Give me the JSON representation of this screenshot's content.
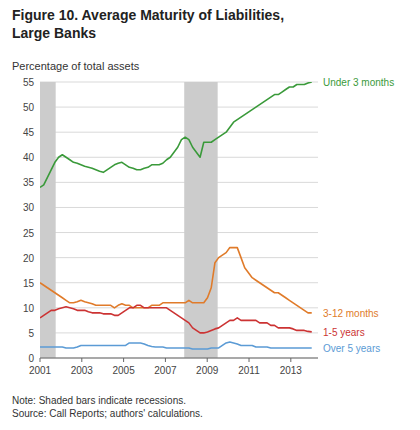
{
  "chart_data": {
    "type": "line",
    "title": "Figure 10. Average Maturity of Liabilities,\nLarge Banks",
    "ylabel": "Percentage of total assets",
    "note": "Note: Shaded bars indicate recessions.\nSource: Call Reports; authors' calculations.",
    "xlim": [
      2001.0,
      2014.3
    ],
    "ylim": [
      0,
      55
    ],
    "xticks": [
      2001,
      2003,
      2005,
      2007,
      2009,
      2011,
      2013
    ],
    "yticks": [
      0,
      5,
      10,
      15,
      20,
      25,
      30,
      35,
      40,
      45,
      50,
      55
    ],
    "grid": true,
    "shaded_bands": [
      [
        2001.0,
        2001.75
      ],
      [
        2007.9,
        2009.5
      ]
    ],
    "band_color": "#cccccc",
    "x": [
      2001.0,
      2001.1781,
      2001.3562,
      2001.5342,
      2001.7123,
      2001.8904,
      2002.0685,
      2002.2466,
      2002.4247,
      2002.6027,
      2002.7808,
      2002.9589,
      2003.137,
      2003.3151,
      2003.4932,
      2003.6712,
      2003.8493,
      2004.0274,
      2004.2055,
      2004.3836,
      2004.5616,
      2004.7397,
      2004.9178,
      2005.0959,
      2005.274,
      2005.4521,
      2005.6301,
      2005.8082,
      2005.9863,
      2006.1644,
      2006.3425,
      2006.5205,
      2006.6986,
      2006.8767,
      2007.0548,
      2007.2329,
      2007.411,
      2007.589,
      2007.7671,
      2007.9452,
      2008.1233,
      2008.3014,
      2008.4795,
      2008.6575,
      2008.8356,
      2009.0137,
      2009.1918,
      2009.3699,
      2009.5479,
      2009.726,
      2009.9041,
      2010.0822,
      2010.2603,
      2010.4384,
      2010.6164,
      2010.7945,
      2010.9726,
      2011.1507,
      2011.3288,
      2011.5068,
      2011.6849,
      2011.863,
      2012.0411,
      2012.2192,
      2012.3973,
      2012.5753,
      2012.7534,
      2012.9315,
      2013.1096,
      2013.2877,
      2013.4658,
      2013.6438,
      2013.8219,
      2014.0
    ],
    "series": [
      {
        "name": "Under 3 months",
        "color": "#3a9a3a",
        "values": [
          34.0,
          34.5,
          36.0,
          37.5,
          39.0,
          40.0,
          40.5,
          40.0,
          39.5,
          39.0,
          38.8,
          38.5,
          38.2,
          38.0,
          37.8,
          37.5,
          37.2,
          37.0,
          37.5,
          38.0,
          38.5,
          38.8,
          39.0,
          38.5,
          38.0,
          37.8,
          37.5,
          37.5,
          37.8,
          38.0,
          38.5,
          38.5,
          38.5,
          38.8,
          39.5,
          40.0,
          41.0,
          42.0,
          43.5,
          44.0,
          43.5,
          42.0,
          41.0,
          40.0,
          43.0,
          43.0,
          43.0,
          43.5,
          44.0,
          44.5,
          45.0,
          46.0,
          47.0,
          47.5,
          48.0,
          48.5,
          49.0,
          49.5,
          50.0,
          50.5,
          51.0,
          51.5,
          52.0,
          52.5,
          52.5,
          53.0,
          53.5,
          54.0,
          54.0,
          54.5,
          54.5,
          54.5,
          54.8,
          55.0
        ]
      },
      {
        "name": "3-12 months",
        "color": "#e07b2a",
        "values": [
          15.0,
          14.5,
          14.0,
          13.5,
          13.0,
          12.5,
          12.0,
          11.5,
          11.0,
          11.0,
          11.2,
          11.5,
          11.2,
          11.0,
          10.8,
          10.5,
          10.5,
          10.5,
          10.5,
          10.5,
          10.0,
          10.5,
          10.8,
          10.5,
          10.5,
          10.0,
          10.0,
          10.0,
          10.0,
          10.0,
          10.5,
          10.5,
          10.5,
          11.0,
          11.0,
          11.0,
          11.0,
          11.0,
          11.0,
          11.0,
          11.5,
          11.0,
          11.0,
          11.0,
          11.0,
          12.0,
          14.0,
          19.0,
          20.0,
          20.5,
          21.0,
          22.0,
          22.0,
          22.0,
          20.0,
          18.0,
          17.0,
          16.0,
          15.5,
          15.0,
          14.5,
          14.0,
          13.5,
          13.0,
          13.0,
          12.5,
          12.0,
          11.5,
          11.0,
          10.5,
          10.0,
          9.5,
          9.0,
          9.0
        ]
      },
      {
        "name": "1-5 years",
        "color": "#cc3333",
        "values": [
          8.0,
          8.5,
          9.0,
          9.5,
          9.5,
          9.8,
          10.0,
          10.2,
          10.0,
          9.8,
          9.5,
          9.5,
          9.5,
          9.2,
          9.0,
          9.0,
          9.0,
          8.8,
          8.8,
          8.8,
          8.5,
          8.5,
          9.0,
          9.5,
          10.0,
          10.0,
          10.5,
          10.5,
          10.0,
          10.0,
          10.0,
          10.0,
          10.0,
          10.0,
          10.0,
          9.5,
          9.0,
          8.5,
          8.0,
          7.5,
          7.0,
          6.0,
          5.5,
          5.0,
          5.0,
          5.2,
          5.5,
          5.8,
          6.0,
          6.5,
          7.0,
          7.5,
          7.5,
          8.0,
          7.5,
          7.5,
          7.5,
          7.5,
          7.5,
          7.0,
          7.0,
          7.0,
          6.5,
          6.5,
          6.0,
          6.0,
          6.0,
          6.0,
          5.8,
          5.5,
          5.5,
          5.5,
          5.3,
          5.2
        ]
      },
      {
        "name": "Over 5 years",
        "color": "#5b9bd5",
        "values": [
          2.2,
          2.2,
          2.2,
          2.2,
          2.2,
          2.2,
          2.2,
          2.0,
          2.0,
          2.0,
          2.2,
          2.5,
          2.5,
          2.5,
          2.5,
          2.5,
          2.5,
          2.5,
          2.5,
          2.5,
          2.5,
          2.5,
          2.5,
          2.5,
          3.0,
          3.0,
          3.0,
          3.0,
          2.8,
          2.5,
          2.3,
          2.2,
          2.2,
          2.2,
          2.0,
          2.0,
          2.0,
          2.0,
          2.0,
          2.0,
          2.0,
          1.8,
          1.8,
          1.8,
          1.8,
          1.8,
          2.0,
          2.0,
          2.0,
          2.5,
          3.0,
          3.2,
          3.0,
          2.8,
          2.5,
          2.5,
          2.5,
          2.5,
          2.2,
          2.2,
          2.2,
          2.2,
          2.0,
          2.0,
          2.0,
          2.0,
          2.0,
          2.0,
          2.0,
          2.0,
          2.0,
          2.0,
          2.0,
          2.0
        ]
      }
    ]
  }
}
